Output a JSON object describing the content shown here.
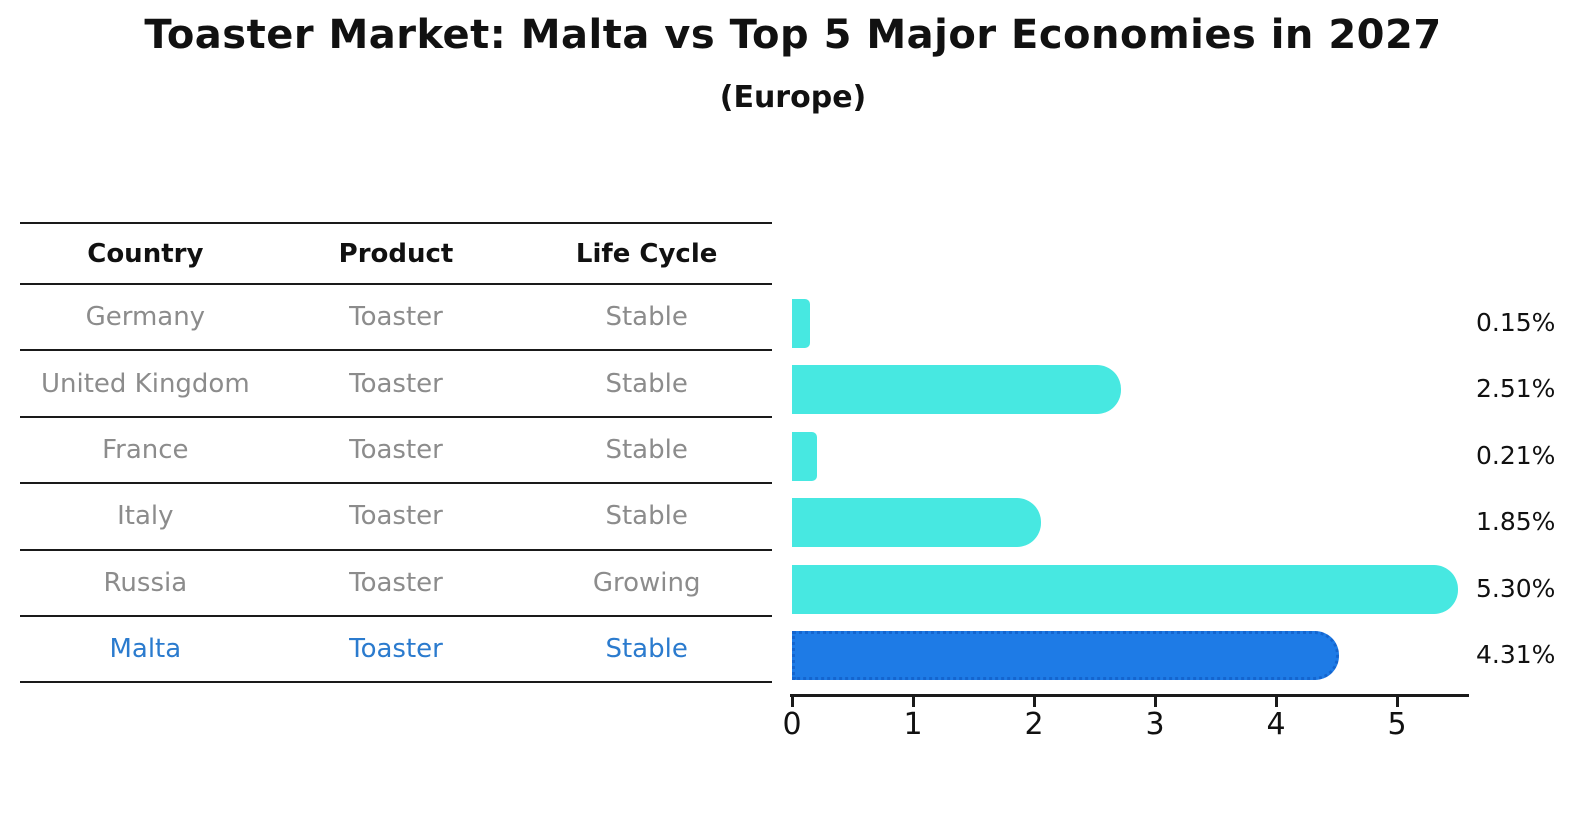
{
  "title": "Toaster Market: Malta vs Top 5 Major Economies in 2027",
  "subtitle": "(Europe)",
  "table": {
    "headers": [
      "Country",
      "Product",
      "Life Cycle"
    ],
    "rows": [
      {
        "country": "Germany",
        "product": "Toaster",
        "life_cycle": "Stable",
        "highlight": false
      },
      {
        "country": "United Kingdom",
        "product": "Toaster",
        "life_cycle": "Stable",
        "highlight": false
      },
      {
        "country": "France",
        "product": "Toaster",
        "life_cycle": "Stable",
        "highlight": false
      },
      {
        "country": "Italy",
        "product": "Toaster",
        "life_cycle": "Stable",
        "highlight": false
      },
      {
        "country": "Russia",
        "product": "Toaster",
        "life_cycle": "Growing",
        "highlight": false
      },
      {
        "country": "Malta",
        "product": "Toaster",
        "life_cycle": "Stable",
        "highlight": true
      }
    ]
  },
  "chart_data": {
    "type": "bar",
    "orientation": "horizontal",
    "title": "Toaster Market: Malta vs Top 5 Major Economies in 2027",
    "subtitle": "(Europe)",
    "categories": [
      "Germany",
      "United Kingdom",
      "France",
      "Italy",
      "Russia",
      "Malta"
    ],
    "values": [
      0.15,
      2.51,
      0.21,
      1.85,
      5.3,
      4.31
    ],
    "value_labels": [
      "0.15%",
      "2.51%",
      "0.21%",
      "1.85%",
      "5.30%",
      "4.31%"
    ],
    "xlabel": "",
    "ylabel": "",
    "xlim": [
      0,
      5.6
    ],
    "xticks": [
      0,
      1,
      2,
      3,
      4,
      5
    ],
    "grid": false,
    "legend": false,
    "highlight_index": 5,
    "colors": {
      "bar": "#47e8e1",
      "highlight_bar": "#1e7be6",
      "highlight_bar_border": "#1465cf",
      "highlight_text": "#2b7bce",
      "table_text": "#8c8c8c",
      "heading_text": "#111111",
      "axis": "#1a1a1a",
      "background": "#ffffff"
    }
  }
}
